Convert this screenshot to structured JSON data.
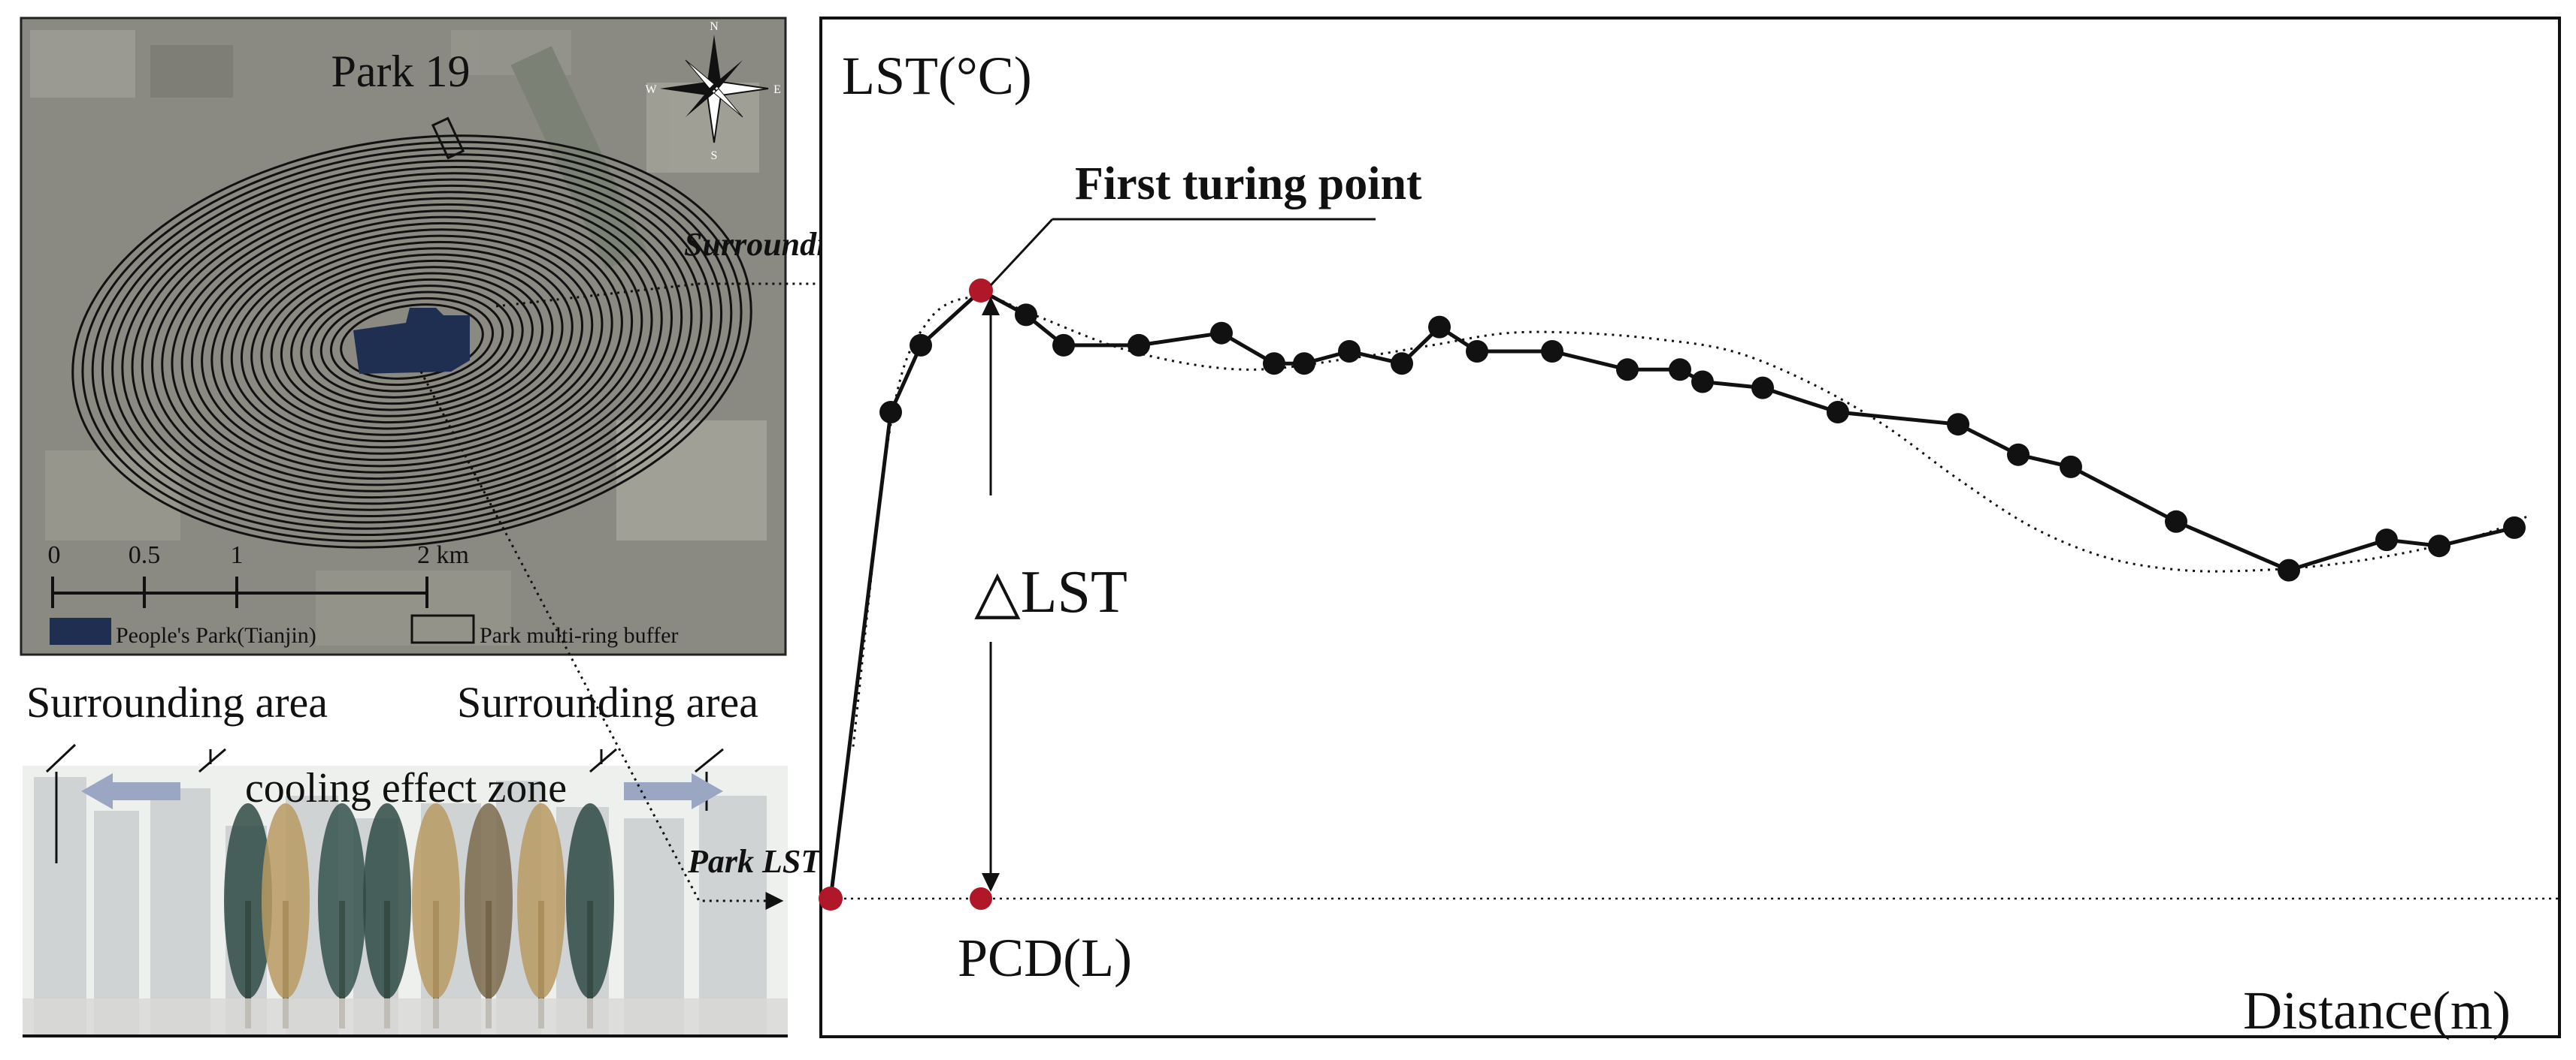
{
  "map": {
    "title": "Park 19",
    "compass": {
      "n": "N",
      "s": "S",
      "e": "E",
      "w": "W"
    },
    "scale_ticks": [
      "0",
      "0.5",
      "1",
      "2 km"
    ],
    "legend": {
      "park_label": "People's Park(Tianjin)",
      "buffer_label": "Park multi-ring buffer"
    },
    "colors": {
      "park_fill": "#1f2f52",
      "rings": "#111111",
      "bg": "#8a8a82"
    }
  },
  "schematic": {
    "label_left": "Surrounding area",
    "label_right": "Surrounding area",
    "zone_label": "cooling effect zone",
    "arrow_color": "#9aa6c2"
  },
  "chart": {
    "ylabel": "LST(°C)",
    "xlabel": "Distance(m)",
    "turning_point_label": "First turing point",
    "surrounding_label": "Surrounding LST",
    "park_label": "Park LST",
    "delta_label": "△LST",
    "pcd_label": "PCD(L)",
    "colors": {
      "marker": "#111111",
      "key_point": "#b0182a"
    }
  },
  "chart_data": {
    "type": "line",
    "xlabel": "Distance(m)",
    "ylabel": "LST(°C)",
    "series": [
      {
        "x": [
          0,
          0.08,
          0.12,
          0.2,
          0.26,
          0.31,
          0.41,
          0.52,
          0.59,
          0.63,
          0.69,
          0.76,
          0.81,
          0.86,
          0.96,
          1.06,
          1.13,
          1.16,
          1.24,
          1.34,
          1.5,
          1.58,
          1.65,
          1.79,
          1.94,
          2.07,
          2.14,
          2.24
        ],
        "y": [
          0,
          0.8,
          0.91,
          1.0,
          0.96,
          0.91,
          0.91,
          0.93,
          0.88,
          0.88,
          0.9,
          0.88,
          0.94,
          0.9,
          0.9,
          0.87,
          0.87,
          0.85,
          0.84,
          0.8,
          0.78,
          0.73,
          0.71,
          0.62,
          0.54,
          0.59,
          0.58,
          0.61
        ]
      }
    ],
    "fit": {
      "x": [
        0.03,
        0.08,
        0.13,
        0.2,
        0.27,
        0.4,
        0.55,
        0.7,
        0.8,
        0.9,
        1.0,
        1.1,
        1.2,
        1.3,
        1.4,
        1.5,
        1.6,
        1.7,
        1.8,
        1.9,
        2.0,
        2.1,
        2.2,
        2.26
      ],
      "y": [
        0.25,
        0.78,
        0.95,
        0.99,
        0.96,
        0.9,
        0.87,
        0.89,
        0.91,
        0.93,
        0.93,
        0.92,
        0.9,
        0.85,
        0.78,
        0.69,
        0.61,
        0.56,
        0.54,
        0.54,
        0.55,
        0.57,
        0.6,
        0.63
      ]
    },
    "key_points": {
      "park_lst": [
        0,
        0
      ],
      "first_turning_point": [
        0.2,
        1.0
      ],
      "pcd": [
        0.2,
        0
      ]
    }
  }
}
